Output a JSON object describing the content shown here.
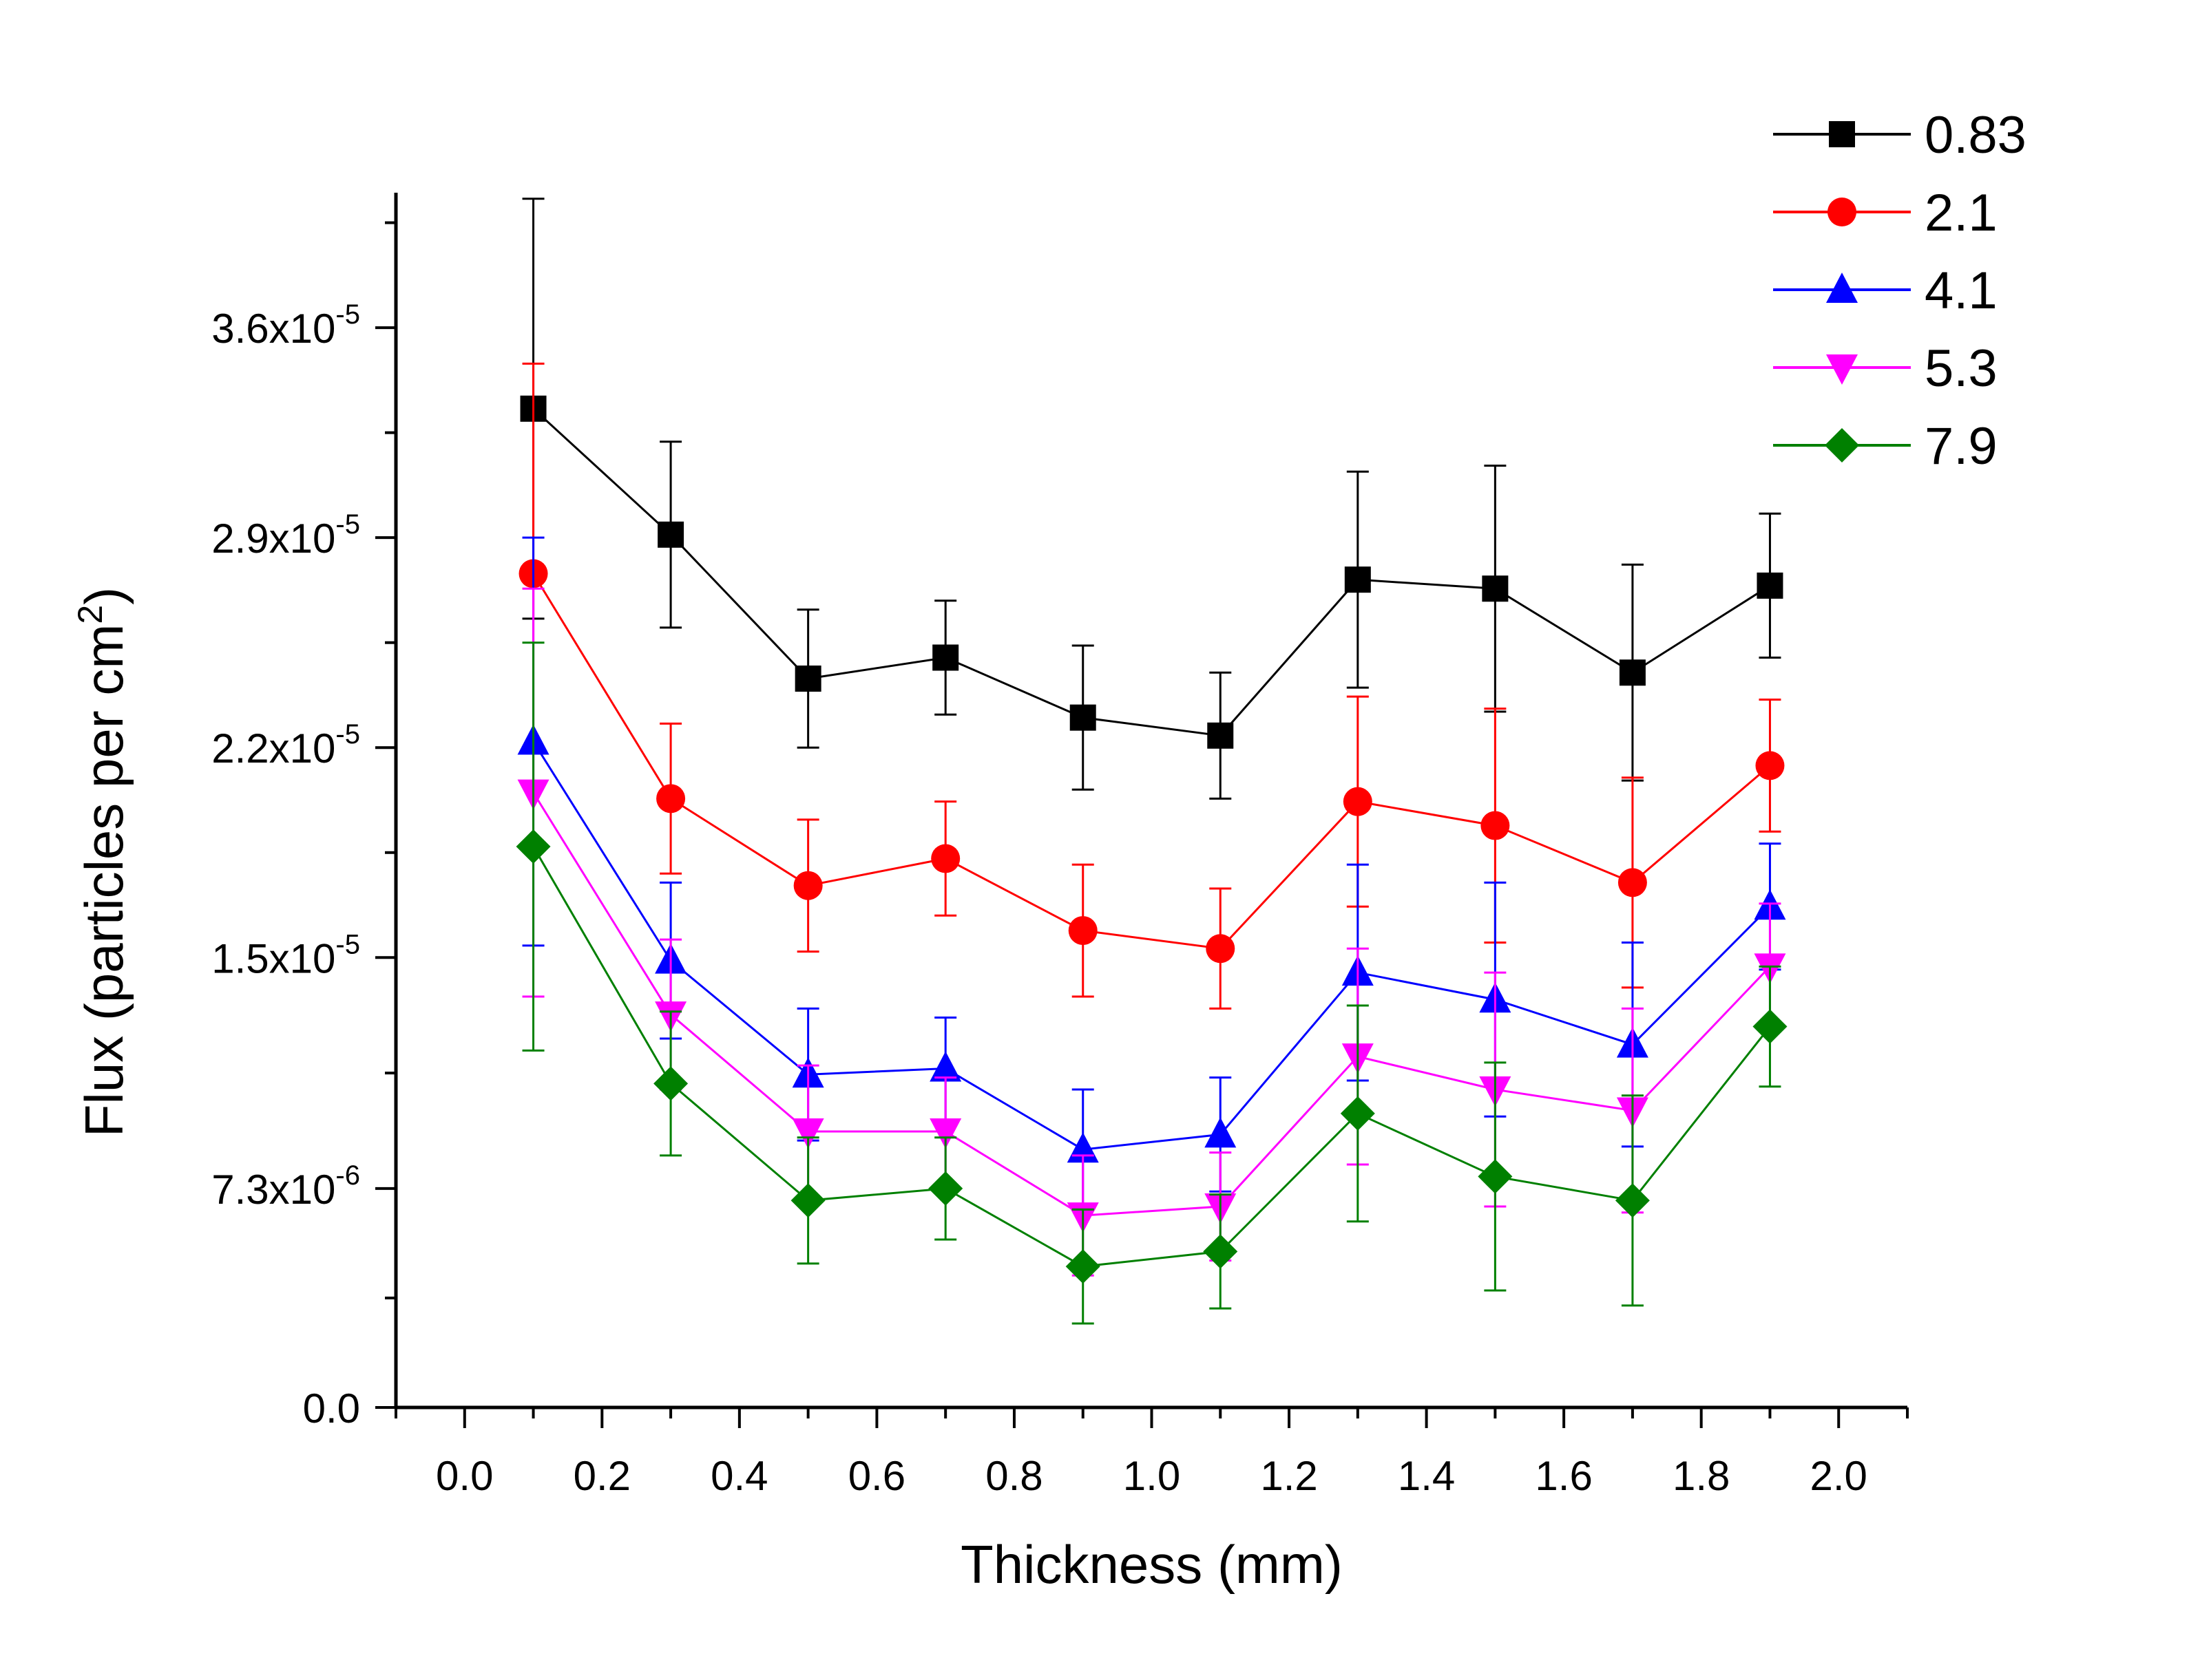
{
  "chart_data": {
    "type": "line",
    "title": "",
    "xlabel": "Thickness (mm)",
    "ylabel": {
      "main": "Flux (particles per cm",
      "sup": "2",
      "end": ")"
    },
    "xlim": [
      -0.1,
      2.1
    ],
    "ylim": [
      0,
      4.05e-05
    ],
    "x_ticks": [
      "0.0",
      "0.2",
      "0.4",
      "0.6",
      "0.8",
      "1.0",
      "1.2",
      "1.4",
      "1.6",
      "1.8",
      "2.0"
    ],
    "x_tick_values": [
      0.0,
      0.2,
      0.4,
      0.6,
      0.8,
      1.0,
      1.2,
      1.4,
      1.6,
      1.8,
      2.0
    ],
    "y_ticks": [
      {
        "value": 0,
        "mantissa": "0.0",
        "exponent": ""
      },
      {
        "value": 7.3e-06,
        "mantissa": "7.3x10",
        "exponent": "-6"
      },
      {
        "value": 1.5e-05,
        "mantissa": "1.5x10",
        "exponent": "-5"
      },
      {
        "value": 2.2e-05,
        "mantissa": "2.2x10",
        "exponent": "-5"
      },
      {
        "value": 2.9e-05,
        "mantissa": "2.9x10",
        "exponent": "-5"
      },
      {
        "value": 3.6e-05,
        "mantissa": "3.6x10",
        "exponent": "-5"
      }
    ],
    "grid": false,
    "legend_position": "top-right",
    "x": [
      0.1,
      0.3,
      0.5,
      0.7,
      0.9,
      1.1,
      1.3,
      1.5,
      1.7,
      1.9
    ],
    "series": [
      {
        "name": "0.83",
        "color": "#000000",
        "marker": "square",
        "values": [
          3.33e-05,
          2.91e-05,
          2.43e-05,
          2.5e-05,
          2.3e-05,
          2.24e-05,
          2.76e-05,
          2.73e-05,
          2.45e-05,
          2.74e-05
        ],
        "errors": [
          7e-06,
          3.1e-06,
          2.3e-06,
          1.9e-06,
          2.4e-06,
          2.1e-06,
          3.6e-06,
          4.1e-06,
          3.6e-06,
          2.4e-06
        ]
      },
      {
        "name": "2.1",
        "color": "#ff0000",
        "marker": "circle",
        "values": [
          2.78e-05,
          2.03e-05,
          1.74e-05,
          1.83e-05,
          1.59e-05,
          1.53e-05,
          2.02e-05,
          1.94e-05,
          1.75e-05,
          2.14e-05
        ],
        "errors": [
          7e-06,
          2.5e-06,
          2.2e-06,
          1.9e-06,
          2.2e-06,
          2e-06,
          3.5e-06,
          3.9e-06,
          3.5e-06,
          2.2e-06
        ]
      },
      {
        "name": "4.1",
        "color": "#0000ff",
        "marker": "triangle-up",
        "values": [
          2.22e-05,
          1.49e-05,
          1.11e-05,
          1.13e-05,
          8.6e-06,
          9.1e-06,
          1.45e-05,
          1.36e-05,
          1.21e-05,
          1.67e-05
        ],
        "errors": [
          6.8e-06,
          2.6e-06,
          2.2e-06,
          1.7e-06,
          2e-06,
          1.9e-06,
          3.6e-06,
          3.9e-06,
          3.4e-06,
          2.1e-06
        ]
      },
      {
        "name": "5.3",
        "color": "#ff00ff",
        "marker": "triangle-down",
        "values": [
          2.05e-05,
          1.31e-05,
          9.2e-06,
          9.2e-06,
          6.4e-06,
          6.7e-06,
          1.17e-05,
          1.06e-05,
          9.9e-06,
          1.47e-05
        ],
        "errors": [
          6.8e-06,
          2.5e-06,
          2.2e-06,
          1.8e-06,
          2e-06,
          1.8e-06,
          3.6e-06,
          3.9e-06,
          3.4e-06,
          2.1e-06
        ]
      },
      {
        "name": "7.9",
        "color": "#008000",
        "marker": "diamond",
        "values": [
          1.87e-05,
          1.08e-05,
          6.9e-06,
          7.3e-06,
          4.7e-06,
          5.2e-06,
          9.8e-06,
          7.7e-06,
          6.9e-06,
          1.27e-05
        ],
        "errors": [
          6.8e-06,
          2.4e-06,
          2.1e-06,
          1.7e-06,
          1.9e-06,
          1.9e-06,
          3.6e-06,
          3.8e-06,
          3.5e-06,
          2e-06
        ]
      }
    ]
  }
}
